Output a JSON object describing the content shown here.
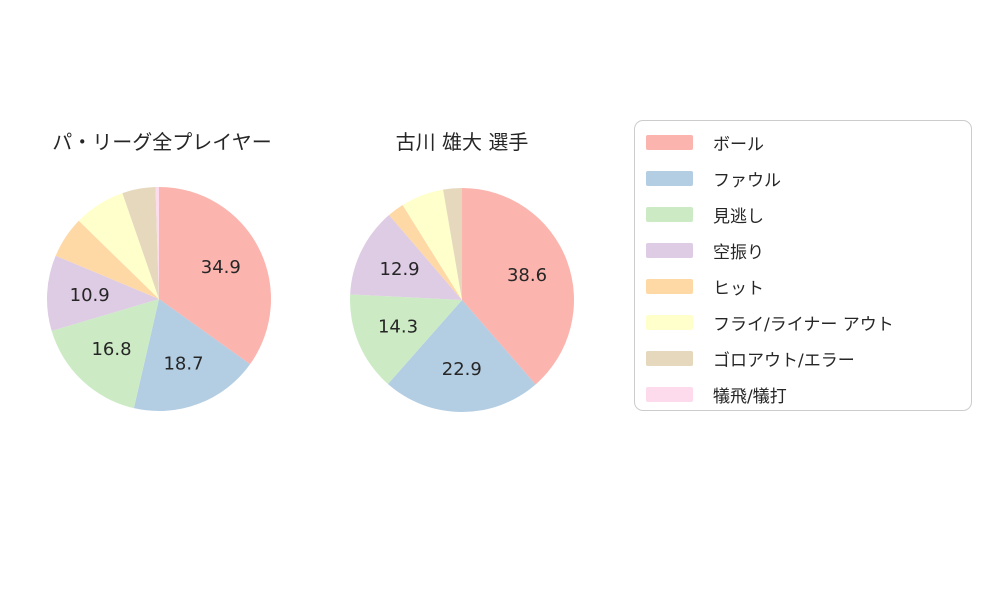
{
  "page": {
    "background_color": "#ffffff",
    "text_color": "#262626"
  },
  "palette": {
    "red": "#fbb4ae",
    "blue": "#b3cde3",
    "green": "#ccebc5",
    "purple": "#decbe4",
    "orange": "#fed9a6",
    "yellow": "#ffffcc",
    "tan": "#e5d8bd",
    "pink": "#fddaec"
  },
  "chart_data": [
    {
      "type": "pie",
      "title": "パ・リーグ全プレイヤー",
      "unit": "%",
      "start": "top",
      "direction": "clockwise",
      "slices": [
        {
          "label": "ボール",
          "value": 34.9,
          "display": "34.9",
          "color": "#fbb4ae"
        },
        {
          "label": "ファウル",
          "value": 18.7,
          "display": "18.7",
          "color": "#b3cde3"
        },
        {
          "label": "見逃し",
          "value": 16.8,
          "display": "16.8",
          "color": "#ccebc5"
        },
        {
          "label": "空振り",
          "value": 10.9,
          "display": "10.9",
          "color": "#decbe4"
        },
        {
          "label": "ヒット",
          "value": 6.0,
          "display": "",
          "color": "#fed9a6"
        },
        {
          "label": "フライ/ライナー アウト",
          "value": 7.4,
          "display": "",
          "color": "#ffffcc"
        },
        {
          "label": "ゴロアウト/エラー",
          "value": 4.8,
          "display": "",
          "color": "#e5d8bd"
        },
        {
          "label": "犠飛/犠打",
          "value": 0.5,
          "display": "",
          "color": "#fddaec"
        }
      ]
    },
    {
      "type": "pie",
      "title": "古川 雄大  選手",
      "unit": "%",
      "start": "top",
      "direction": "clockwise",
      "slices": [
        {
          "label": "ボール",
          "value": 38.6,
          "display": "38.6",
          "color": "#fbb4ae"
        },
        {
          "label": "ファウル",
          "value": 22.9,
          "display": "22.9",
          "color": "#b3cde3"
        },
        {
          "label": "見逃し",
          "value": 14.3,
          "display": "14.3",
          "color": "#ccebc5"
        },
        {
          "label": "空振り",
          "value": 12.9,
          "display": "12.9",
          "color": "#decbe4"
        },
        {
          "label": "ヒット",
          "value": 2.4,
          "display": "",
          "color": "#fed9a6"
        },
        {
          "label": "フライ/ライナー アウト",
          "value": 6.2,
          "display": "",
          "color": "#ffffcc"
        },
        {
          "label": "ゴロアウト/エラー",
          "value": 2.7,
          "display": "",
          "color": "#e5d8bd"
        },
        {
          "label": "犠飛/犠打",
          "value": 0.0,
          "display": "",
          "color": "#fddaec"
        }
      ]
    }
  ],
  "legend": {
    "items": [
      {
        "label": "ボール",
        "color": "#fbb4ae"
      },
      {
        "label": "ファウル",
        "color": "#b3cde3"
      },
      {
        "label": "見逃し",
        "color": "#ccebc5"
      },
      {
        "label": "空振り",
        "color": "#decbe4"
      },
      {
        "label": "ヒット",
        "color": "#fed9a6"
      },
      {
        "label": "フライ/ライナー アウト",
        "color": "#ffffcc"
      },
      {
        "label": "ゴロアウト/エラー",
        "color": "#e5d8bd"
      },
      {
        "label": "犠飛/犠打",
        "color": "#fddaec"
      }
    ]
  }
}
